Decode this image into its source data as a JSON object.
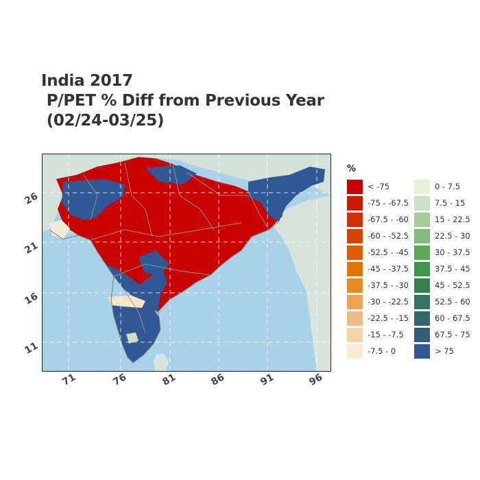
{
  "title": {
    "line1": "India 2017",
    "line2": " P/PET % Diff from Previous Year",
    "line3": " (02/24-03/25)"
  },
  "map": {
    "ocean_color": "#a9d1e8",
    "land_color": "#d9e6e0",
    "border_color": "#9a9a9a",
    "graticule_color": "#ffffff",
    "x_ticks": [
      "71",
      "76",
      "81",
      "86",
      "91",
      "96"
    ],
    "y_ticks": [
      "26",
      "21",
      "16",
      "11"
    ]
  },
  "legend": {
    "title": "%",
    "left_column": [
      {
        "label": "< -75",
        "color": "#c80000"
      },
      {
        "label": "-75 - -67.5",
        "color": "#cc1a00"
      },
      {
        "label": "-67.5 - -60",
        "color": "#d22e00"
      },
      {
        "label": "-60 - -52.5",
        "color": "#d84300"
      },
      {
        "label": "-52.5 - -45",
        "color": "#de5b00"
      },
      {
        "label": "-45 - -37.5",
        "color": "#e47400"
      },
      {
        "label": "-37.5 - -30",
        "color": "#e88c22"
      },
      {
        "label": "-30 - -22.5",
        "color": "#eca454"
      },
      {
        "label": "-22.5 - -15",
        "color": "#f0bb80"
      },
      {
        "label": "-15 - -7.5",
        "color": "#f5d4a8"
      },
      {
        "label": "-7.5 - 0",
        "color": "#faead0"
      }
    ],
    "right_column": [
      {
        "label": "0 - 7.5",
        "color": "#e6efd8"
      },
      {
        "label": "7.5 - 15",
        "color": "#cce0c4"
      },
      {
        "label": "15 - 22.5",
        "color": "#a7cd9b"
      },
      {
        "label": "22.5 - 30",
        "color": "#82ba7a"
      },
      {
        "label": "30 - 37.5",
        "color": "#5ea85c"
      },
      {
        "label": "37.5 - 45",
        "color": "#3f9447"
      },
      {
        "label": "45 - 52.5",
        "color": "#35804c"
      },
      {
        "label": "52.5 - 60",
        "color": "#357361"
      },
      {
        "label": "60 - 67.5",
        "color": "#33666a"
      },
      {
        "label": "67.5 - 75",
        "color": "#335c78"
      },
      {
        "label": "> 75",
        "color": "#2f5895"
      }
    ]
  }
}
